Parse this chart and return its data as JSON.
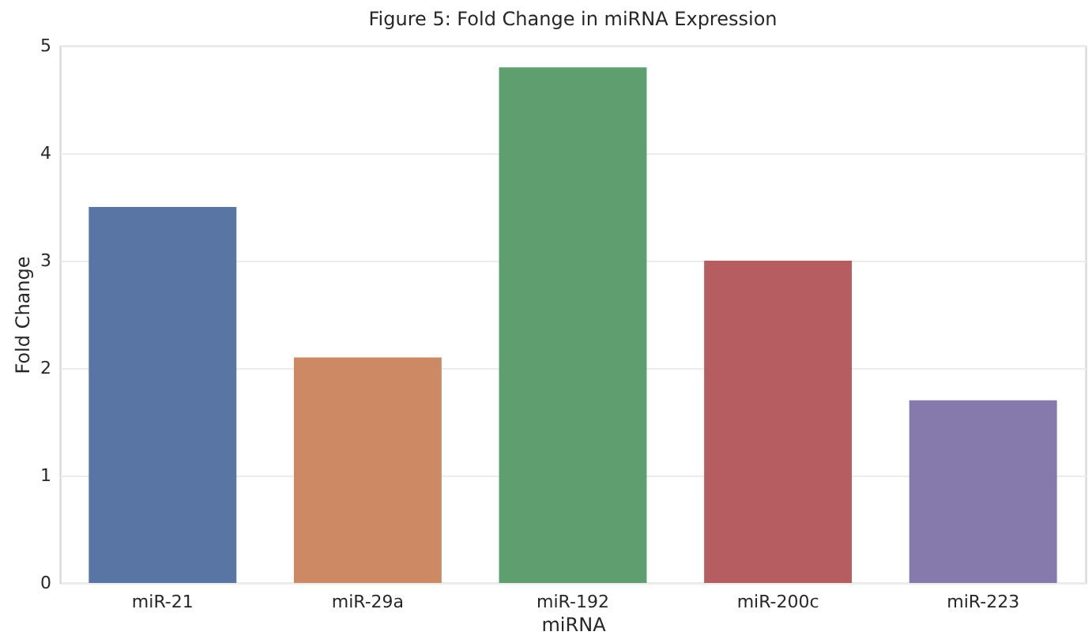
{
  "chart_data": {
    "type": "bar",
    "title": "Figure 5: Fold Change in miRNA Expression",
    "xlabel": "miRNA",
    "ylabel": "Fold Change",
    "categories": [
      "miR-21",
      "miR-29a",
      "miR-192",
      "miR-200c",
      "miR-223"
    ],
    "values": [
      3.5,
      2.1,
      4.8,
      3.0,
      1.7
    ],
    "colors": [
      "#5875a4",
      "#cc8963",
      "#5f9e6e",
      "#b55d60",
      "#857aab"
    ],
    "ylim": [
      0,
      5
    ],
    "yticks": [
      0,
      1,
      2,
      3,
      4,
      5
    ],
    "grid": "y"
  }
}
